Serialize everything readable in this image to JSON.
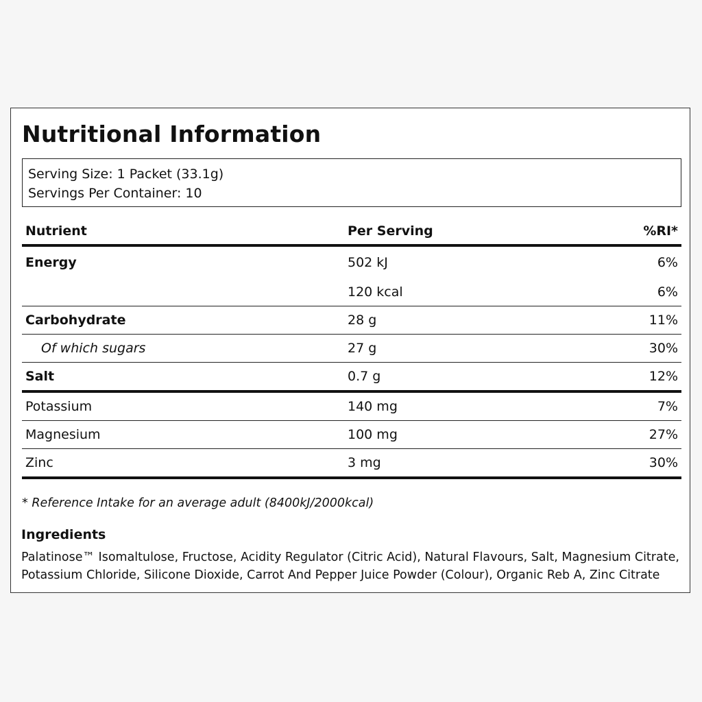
{
  "title": "Nutritional Information",
  "serving": {
    "size": "Serving Size: 1 Packet (33.1g)",
    "per_container": "Servings Per Container: 10"
  },
  "table": {
    "headers": {
      "nutrient": "Nutrient",
      "per_serving": "Per Serving",
      "ri": "%RI*"
    },
    "rows": [
      {
        "nutrient": "Energy",
        "per_serving": "502 kJ",
        "ri": "6%"
      },
      {
        "nutrient": "",
        "per_serving": "120 kcal",
        "ri": "6%"
      },
      {
        "nutrient": "Carbohydrate",
        "per_serving": "28 g",
        "ri": "11%"
      },
      {
        "nutrient": "Of which sugars",
        "per_serving": "27 g",
        "ri": "30%"
      },
      {
        "nutrient": "Salt",
        "per_serving": "0.7 g",
        "ri": "12%"
      },
      {
        "nutrient": "Potassium",
        "per_serving": "140 mg",
        "ri": "7%"
      },
      {
        "nutrient": "Magnesium",
        "per_serving": "100 mg",
        "ri": "27%"
      },
      {
        "nutrient": "Zinc",
        "per_serving": "3 mg",
        "ri": "30%"
      }
    ]
  },
  "footnote": "* Reference Intake for an average adult (8400kJ/2000kcal)",
  "ingredients": {
    "title": "Ingredients",
    "line1": "Palatinose™ Isomaltulose, Fructose, Acidity Regulator (Citric Acid), Natural Flavours, Salt, Magnesium Citrate,",
    "line2": "Potassium Chloride, Silicone Dioxide, Carrot And Pepper Juice Powder (Colour), Organic Reb A, Zinc Citrate"
  }
}
